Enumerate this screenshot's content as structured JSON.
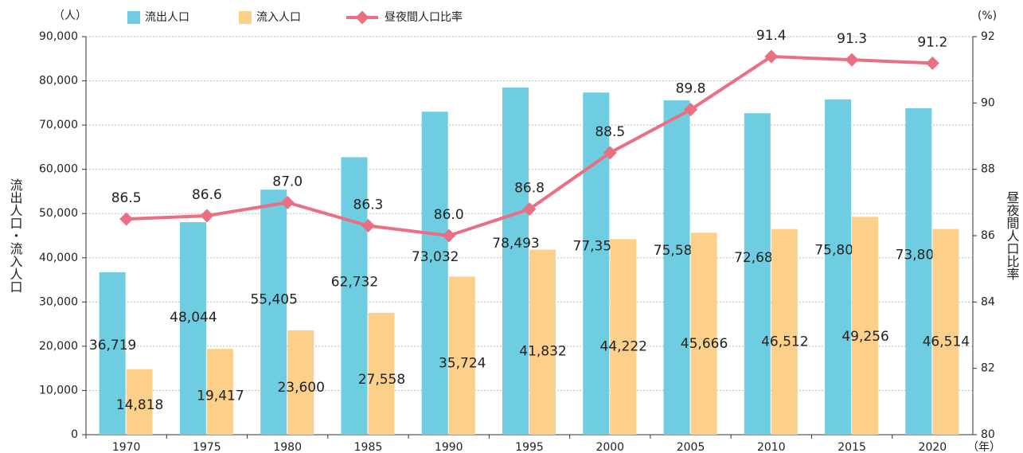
{
  "chart_data": {
    "type": "bar",
    "y_unit": "（人）",
    "y2_unit": "(%)",
    "x_unit": "（年）",
    "y_label": "流出人口・流入人口",
    "y2_label": "昼夜間人口比率",
    "categories": [
      "1970",
      "1975",
      "1980",
      "1985",
      "1990",
      "1995",
      "2000",
      "2005",
      "2010",
      "2015",
      "2020"
    ],
    "series": [
      {
        "name": "流出人口",
        "type": "bar",
        "color": "#6ecde0",
        "values": [
          36719,
          48044,
          55405,
          62732,
          73032,
          78493,
          77359,
          75582,
          72682,
          75808,
          73805
        ],
        "value_labels": [
          "36,719",
          "48,044",
          "55,405",
          "62,732",
          "73,032",
          "78,493",
          "77,359",
          "75,582",
          "72,682",
          "75,808",
          "73,805"
        ]
      },
      {
        "name": "流入人口",
        "type": "bar",
        "color": "#fccf8a",
        "values": [
          14818,
          19417,
          23600,
          27558,
          35724,
          41832,
          44222,
          45666,
          46512,
          49256,
          46514
        ],
        "value_labels": [
          "14,818",
          "19,417",
          "23,600",
          "27,558",
          "35,724",
          "41,832",
          "44,222",
          "45,666",
          "46,512",
          "49,256",
          "46,514"
        ]
      },
      {
        "name": "昼夜間人口比率",
        "type": "line",
        "axis": "y2",
        "color": "#ea6f82",
        "values": [
          86.5,
          86.6,
          87.0,
          86.3,
          86.0,
          86.8,
          88.5,
          89.8,
          91.4,
          91.3,
          91.2
        ],
        "value_labels": [
          "86.5",
          "86.6",
          "87.0",
          "86.3",
          "86.0",
          "86.8",
          "88.5",
          "89.8",
          "91.4",
          "91.3",
          "91.2"
        ]
      }
    ],
    "ylim": [
      0,
      90000
    ],
    "yticks": [
      0,
      {
        "value": 10000,
        "label": "10,000"
      },
      {
        "value": 20000,
        "label": "20,000"
      },
      {
        "value": 30000,
        "label": "30,000"
      },
      {
        "value": 40000,
        "label": "40,000"
      },
      {
        "value": 50000,
        "label": "50,000"
      },
      {
        "value": 60000,
        "label": "60,000"
      },
      {
        "value": 70000,
        "label": "70,000"
      },
      {
        "value": 80000,
        "label": "80,000"
      },
      {
        "value": 90000,
        "label": "90,000"
      }
    ],
    "y2lim": [
      80,
      92
    ],
    "y2ticks": [
      80,
      82,
      84,
      86,
      88,
      90,
      92
    ],
    "grid": true
  }
}
